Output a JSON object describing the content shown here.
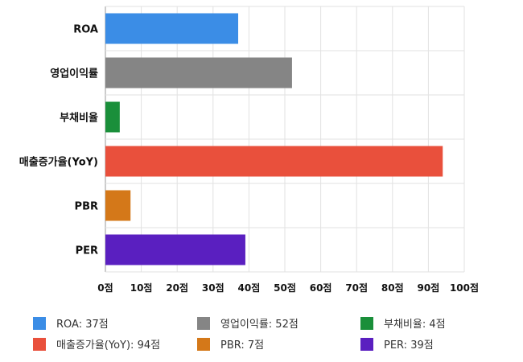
{
  "chart_data": {
    "type": "bar",
    "orientation": "horizontal",
    "categories": [
      "ROA",
      "영업이익률",
      "부채비율",
      "매출증가율(YoY)",
      "PBR",
      "PER"
    ],
    "values": [
      37,
      52,
      4,
      94,
      7,
      39
    ],
    "colors": [
      "#3b8de6",
      "#858585",
      "#1a8f3a",
      "#e9503c",
      "#d47819",
      "#5a1fc0"
    ],
    "xlim": [
      0,
      100
    ],
    "x_ticks": [
      0,
      10,
      20,
      30,
      40,
      50,
      60,
      70,
      80,
      90,
      100
    ],
    "tick_suffix": "점",
    "grid": true,
    "legend": {
      "position": "bottom",
      "entries": [
        "ROA: 37점",
        "영업이익률: 52점",
        "부채비율: 4점",
        "매출증가율(YoY): 94점",
        "PBR: 7점",
        "PER: 39점"
      ]
    }
  }
}
